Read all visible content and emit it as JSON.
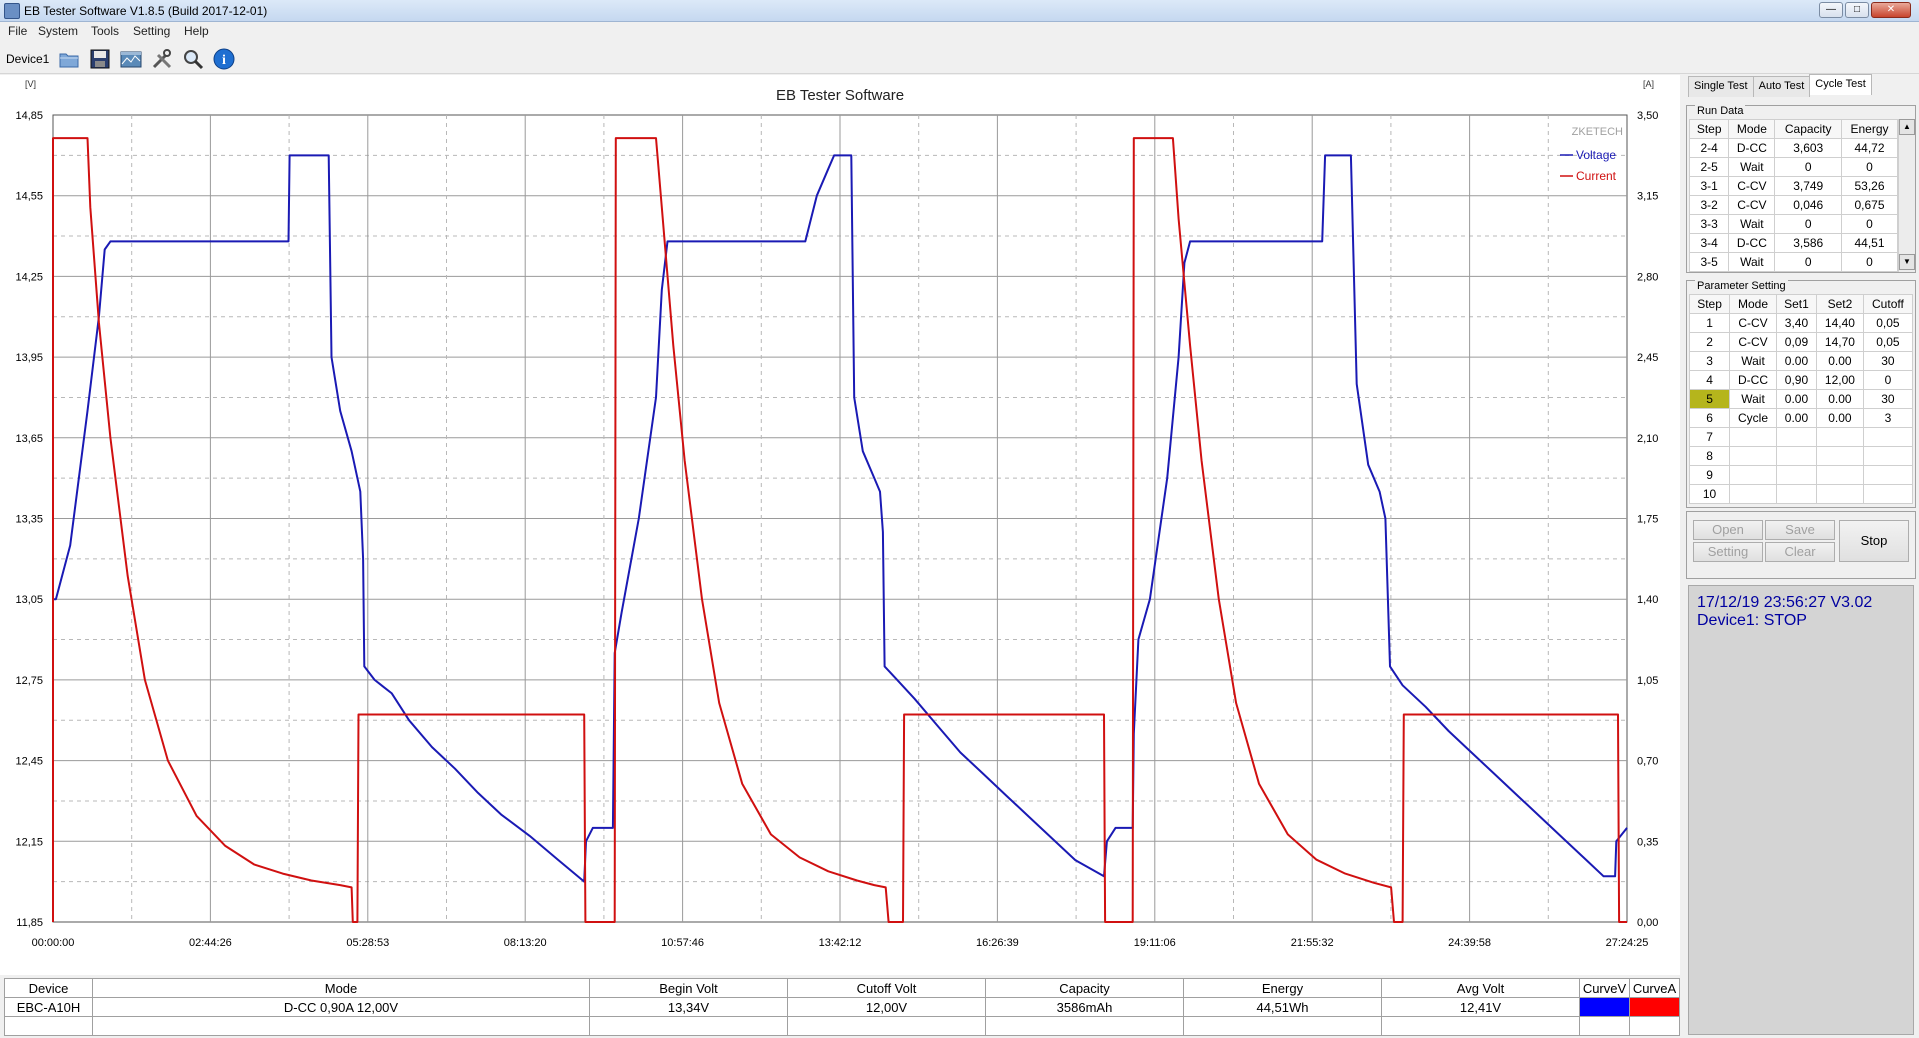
{
  "window": {
    "title": "EB Tester Software V1.8.5 (Build 2017-12-01)"
  },
  "menu": [
    "File",
    "System",
    "Tools",
    "Setting",
    "Help"
  ],
  "toolbar": {
    "device": "Device1"
  },
  "chart_data": {
    "type": "line",
    "title": "EB Tester Software",
    "watermark": "ZKETECH",
    "left_axis_unit": "[V]",
    "right_axis_unit": "[A]",
    "grid": true,
    "legend_position": "top-right",
    "y_left": {
      "min": 11.85,
      "max": 14.85,
      "ticks": [
        "14,85",
        "14,55",
        "14,25",
        "13,95",
        "13,65",
        "13,35",
        "13,05",
        "12,75",
        "12,45",
        "12,15",
        "11,85"
      ]
    },
    "y_right": {
      "min": 0.0,
      "max": 3.5,
      "ticks": [
        "3,50",
        "3,15",
        "2,80",
        "2,45",
        "2,10",
        "1,75",
        "1,40",
        "1,05",
        "0,70",
        "0,35",
        "0,00"
      ]
    },
    "x_ticks": [
      "00:00:00",
      "02:44:26",
      "05:28:53",
      "08:13:20",
      "10:57:46",
      "13:42:12",
      "16:26:39",
      "19:11:06",
      "21:55:32",
      "24:39:58",
      "27:24:25"
    ],
    "x_unit_hours_max": 27.407,
    "series": [
      {
        "name": "Voltage",
        "color": "#1a1ab4",
        "axis": "left",
        "points": [
          [
            0,
            13.05
          ],
          [
            0.05,
            13.05
          ],
          [
            0.3,
            13.25
          ],
          [
            0.6,
            13.75
          ],
          [
            0.8,
            14.1
          ],
          [
            0.9,
            14.35
          ],
          [
            1.0,
            14.38
          ],
          [
            1.3,
            14.38
          ],
          [
            2.5,
            14.38
          ],
          [
            4.0,
            14.38
          ],
          [
            4.1,
            14.38
          ],
          [
            4.12,
            14.7
          ],
          [
            4.5,
            14.7
          ],
          [
            4.8,
            14.7
          ],
          [
            4.85,
            13.95
          ],
          [
            5.0,
            13.75
          ],
          [
            5.2,
            13.6
          ],
          [
            5.3,
            13.5
          ],
          [
            5.35,
            13.45
          ],
          [
            5.4,
            13.2
          ],
          [
            5.42,
            12.8
          ],
          [
            5.6,
            12.75
          ],
          [
            5.9,
            12.7
          ],
          [
            6.2,
            12.6
          ],
          [
            6.6,
            12.5
          ],
          [
            7.0,
            12.42
          ],
          [
            7.4,
            12.33
          ],
          [
            7.8,
            12.25
          ],
          [
            8.3,
            12.17
          ],
          [
            8.8,
            12.08
          ],
          [
            9.25,
            12.0
          ],
          [
            9.28,
            12.15
          ],
          [
            9.4,
            12.2
          ],
          [
            9.75,
            12.2
          ],
          [
            9.78,
            12.85
          ],
          [
            9.9,
            13.0
          ],
          [
            10.2,
            13.35
          ],
          [
            10.5,
            13.8
          ],
          [
            10.6,
            14.2
          ],
          [
            10.7,
            14.38
          ],
          [
            11.0,
            14.38
          ],
          [
            12.0,
            14.38
          ],
          [
            13.1,
            14.38
          ],
          [
            13.3,
            14.55
          ],
          [
            13.5,
            14.65
          ],
          [
            13.6,
            14.7
          ],
          [
            13.9,
            14.7
          ],
          [
            13.95,
            13.8
          ],
          [
            14.1,
            13.6
          ],
          [
            14.3,
            13.5
          ],
          [
            14.4,
            13.45
          ],
          [
            14.45,
            13.3
          ],
          [
            14.48,
            12.8
          ],
          [
            14.7,
            12.75
          ],
          [
            15.0,
            12.68
          ],
          [
            15.4,
            12.58
          ],
          [
            15.8,
            12.48
          ],
          [
            16.2,
            12.4
          ],
          [
            16.6,
            12.32
          ],
          [
            17.0,
            12.24
          ],
          [
            17.4,
            12.16
          ],
          [
            17.8,
            12.08
          ],
          [
            18.3,
            12.02
          ],
          [
            18.35,
            12.15
          ],
          [
            18.5,
            12.2
          ],
          [
            18.8,
            12.2
          ],
          [
            18.82,
            12.55
          ],
          [
            18.9,
            12.9
          ],
          [
            19.1,
            13.05
          ],
          [
            19.4,
            13.5
          ],
          [
            19.6,
            13.95
          ],
          [
            19.7,
            14.3
          ],
          [
            19.8,
            14.38
          ],
          [
            20.3,
            14.38
          ],
          [
            21.5,
            14.38
          ],
          [
            22.1,
            14.38
          ],
          [
            22.15,
            14.7
          ],
          [
            22.6,
            14.7
          ],
          [
            22.7,
            13.85
          ],
          [
            22.9,
            13.55
          ],
          [
            23.1,
            13.45
          ],
          [
            23.2,
            13.35
          ],
          [
            23.28,
            12.8
          ],
          [
            23.5,
            12.73
          ],
          [
            23.9,
            12.65
          ],
          [
            24.3,
            12.56
          ],
          [
            24.7,
            12.48
          ],
          [
            25.1,
            12.4
          ],
          [
            25.5,
            12.32
          ],
          [
            25.9,
            12.24
          ],
          [
            26.3,
            12.16
          ],
          [
            26.7,
            12.08
          ],
          [
            27.0,
            12.02
          ],
          [
            27.2,
            12.02
          ],
          [
            27.22,
            12.15
          ],
          [
            27.407,
            12.2
          ]
        ]
      },
      {
        "name": "Current",
        "color": "#d01010",
        "axis": "right",
        "points": [
          [
            0,
            0
          ],
          [
            0.0,
            3.4
          ],
          [
            0.6,
            3.4
          ],
          [
            0.65,
            3.1
          ],
          [
            0.8,
            2.6
          ],
          [
            1.0,
            2.1
          ],
          [
            1.3,
            1.5
          ],
          [
            1.6,
            1.05
          ],
          [
            2.0,
            0.7
          ],
          [
            2.5,
            0.46
          ],
          [
            3.0,
            0.33
          ],
          [
            3.5,
            0.25
          ],
          [
            4.0,
            0.21
          ],
          [
            4.5,
            0.18
          ],
          [
            5.0,
            0.16
          ],
          [
            5.2,
            0.15
          ],
          [
            5.22,
            0.0
          ],
          [
            5.3,
            0.0
          ],
          [
            5.32,
            0.9
          ],
          [
            9.25,
            0.9
          ],
          [
            9.27,
            0.0
          ],
          [
            9.78,
            0.0
          ],
          [
            9.8,
            3.4
          ],
          [
            10.5,
            3.4
          ],
          [
            10.6,
            3.1
          ],
          [
            10.8,
            2.5
          ],
          [
            11.0,
            2.0
          ],
          [
            11.3,
            1.4
          ],
          [
            11.6,
            0.95
          ],
          [
            12.0,
            0.6
          ],
          [
            12.5,
            0.38
          ],
          [
            13.0,
            0.28
          ],
          [
            13.5,
            0.22
          ],
          [
            14.0,
            0.18
          ],
          [
            14.3,
            0.16
          ],
          [
            14.5,
            0.15
          ],
          [
            14.55,
            0.0
          ],
          [
            14.8,
            0.0
          ],
          [
            14.82,
            0.9
          ],
          [
            18.3,
            0.9
          ],
          [
            18.32,
            0.0
          ],
          [
            18.8,
            0.0
          ],
          [
            18.82,
            3.4
          ],
          [
            19.5,
            3.4
          ],
          [
            19.6,
            3.05
          ],
          [
            19.8,
            2.5
          ],
          [
            20.0,
            2.0
          ],
          [
            20.3,
            1.4
          ],
          [
            20.6,
            0.95
          ],
          [
            21.0,
            0.6
          ],
          [
            21.5,
            0.38
          ],
          [
            22.0,
            0.27
          ],
          [
            22.5,
            0.21
          ],
          [
            23.0,
            0.17
          ],
          [
            23.3,
            0.15
          ],
          [
            23.35,
            0.0
          ],
          [
            23.5,
            0.0
          ],
          [
            23.52,
            0.9
          ],
          [
            27.25,
            0.9
          ],
          [
            27.27,
            0.0
          ],
          [
            27.407,
            0.0
          ]
        ]
      }
    ]
  },
  "tabs": [
    "Single Test",
    "Auto Test",
    "Cycle Test"
  ],
  "run_data": {
    "title": "Run Data",
    "headers": [
      "Step",
      "Mode",
      "Capacity",
      "Energy"
    ],
    "rows": [
      [
        "2-4",
        "D-CC",
        "3,603",
        "44,72"
      ],
      [
        "2-5",
        "Wait",
        "0",
        "0"
      ],
      [
        "3-1",
        "C-CV",
        "3,749",
        "53,26"
      ],
      [
        "3-2",
        "C-CV",
        "0,046",
        "0,675"
      ],
      [
        "3-3",
        "Wait",
        "0",
        "0"
      ],
      [
        "3-4",
        "D-CC",
        "3,586",
        "44,51"
      ],
      [
        "3-5",
        "Wait",
        "0",
        "0"
      ]
    ]
  },
  "param_setting": {
    "title": "Parameter Setting",
    "headers": [
      "Step",
      "Mode",
      "Set1",
      "Set2",
      "Cutoff"
    ],
    "rows": [
      [
        "1",
        "C-CV",
        "3,40",
        "14,40",
        "0,05"
      ],
      [
        "2",
        "C-CV",
        "0,09",
        "14,70",
        "0,05"
      ],
      [
        "3",
        "Wait",
        "0.00",
        "0.00",
        "30"
      ],
      [
        "4",
        "D-CC",
        "0,90",
        "12,00",
        "0"
      ],
      [
        "5",
        "Wait",
        "0.00",
        "0.00",
        "30"
      ],
      [
        "6",
        "Cycle",
        "0.00",
        "0.00",
        "3"
      ],
      [
        "7",
        "",
        "",
        "",
        ""
      ],
      [
        "8",
        "",
        "",
        "",
        ""
      ],
      [
        "9",
        "",
        "",
        "",
        ""
      ],
      [
        "10",
        "",
        "",
        "",
        ""
      ]
    ],
    "highlight_step": "5",
    "highlight_color": "#b5b51c"
  },
  "buttons": {
    "open": "Open",
    "save": "Save",
    "setting": "Setting",
    "clear": "Clear",
    "stop": "Stop"
  },
  "status": {
    "line1": "17/12/19 23:56:27  V3.02",
    "line2": "Device1: STOP"
  },
  "info": {
    "headers": [
      "Device",
      "Mode",
      "Begin Volt",
      "Cutoff Volt",
      "Capacity",
      "Energy",
      "Avg Volt",
      "CurveV",
      "CurveA"
    ],
    "values": [
      "EBC-A10H",
      "D-CC  0,90A  12,00V",
      "13,34V",
      "12,00V",
      "3586mAh",
      "44,51Wh",
      "12,41V"
    ],
    "curve_v_color": "#0000ff",
    "curve_a_color": "#ff0000"
  }
}
